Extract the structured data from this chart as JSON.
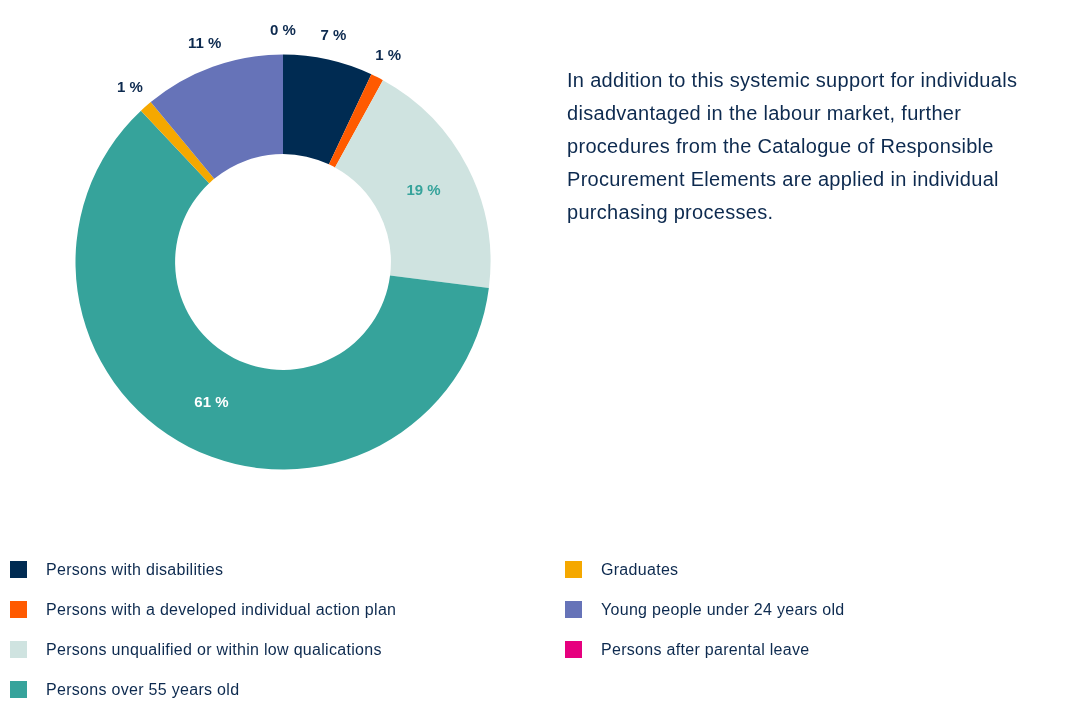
{
  "chart_data": {
    "type": "donut",
    "categories": [
      "Persons with disabilities",
      "Persons with a developed individual action plan",
      "Persons unqualified or within low qualications",
      "Persons over 55 years old",
      "Graduates",
      "Young people under 24 years old",
      "Persons after parental leave"
    ],
    "values": [
      7,
      1,
      19,
      61,
      1,
      11,
      0
    ],
    "colors": [
      "#002b52",
      "#ff5a00",
      "#cfe3e0",
      "#36a39b",
      "#f5a800",
      "#6673b8",
      "#e6007e"
    ],
    "value_labels": [
      "7 %",
      "1 %",
      "19 %",
      "61 %",
      "1 %",
      "11 %",
      "0 %"
    ],
    "legend": "bottom",
    "annotations": [
      "In addition to this systemic support for individuals disadvantaged in the labour market, further procedures from the Catalogue of Responsible Procurement Elements are applied in individual purchasing processes."
    ]
  }
}
